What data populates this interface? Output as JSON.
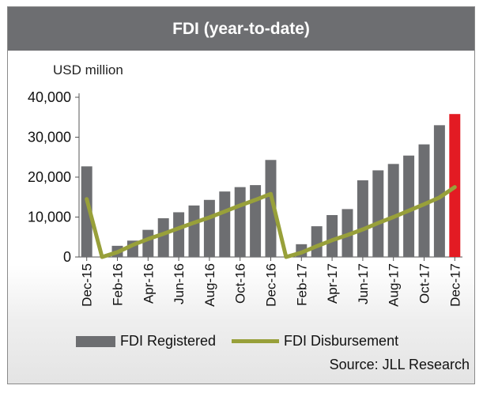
{
  "title": "FDI (year-to-date)",
  "unit_label": "USD million",
  "source": "Source: JLL Research",
  "colors": {
    "bar": "#6d6e71",
    "highlight_bar": "#e31b23",
    "line": "#98a03a",
    "title_bg": "#6d6e71"
  },
  "chart_data": {
    "type": "bar",
    "title": "FDI (year-to-date)",
    "ylabel": "USD million",
    "ylim": [
      0,
      40000
    ],
    "yticks": [
      "0",
      "10,000",
      "20,000",
      "30,000",
      "40,000"
    ],
    "x_tick_labels": [
      "Dec-15",
      "Feb-16",
      "Apr-16",
      "Jun-16",
      "Aug-16",
      "Oct-16",
      "Dec-16",
      "Feb-17",
      "Apr-17",
      "Jun-17",
      "Aug-17",
      "Oct-17",
      "Dec-17"
    ],
    "categories": [
      "Dec-15",
      "Jan-16",
      "Feb-16",
      "Mar-16",
      "Apr-16",
      "May-16",
      "Jun-16",
      "Jul-16",
      "Aug-16",
      "Sep-16",
      "Oct-16",
      "Nov-16",
      "Dec-16",
      "Jan-17",
      "Feb-17",
      "Mar-17",
      "Apr-17",
      "May-17",
      "Jun-17",
      "Jul-17",
      "Aug-17",
      "Sep-17",
      "Oct-17",
      "Nov-17",
      "Dec-17"
    ],
    "highlight_category": "Dec-17",
    "series": [
      {
        "name": "FDI Registered",
        "type": "bar",
        "values": [
          22700,
          0,
          2800,
          4100,
          6800,
          9700,
          11200,
          12900,
          14300,
          16400,
          17500,
          18000,
          24300,
          0,
          3200,
          7700,
          10500,
          12000,
          19200,
          21700,
          23300,
          25400,
          28200,
          33000,
          35800
        ]
      },
      {
        "name": "FDI Disbursement",
        "type": "line",
        "values": [
          14500,
          0,
          1200,
          3000,
          4500,
          5800,
          7200,
          8600,
          9900,
          11400,
          12900,
          14300,
          15800,
          0,
          1100,
          2700,
          4200,
          5500,
          6900,
          8500,
          10000,
          11600,
          13200,
          14900,
          17500
        ]
      }
    ]
  }
}
